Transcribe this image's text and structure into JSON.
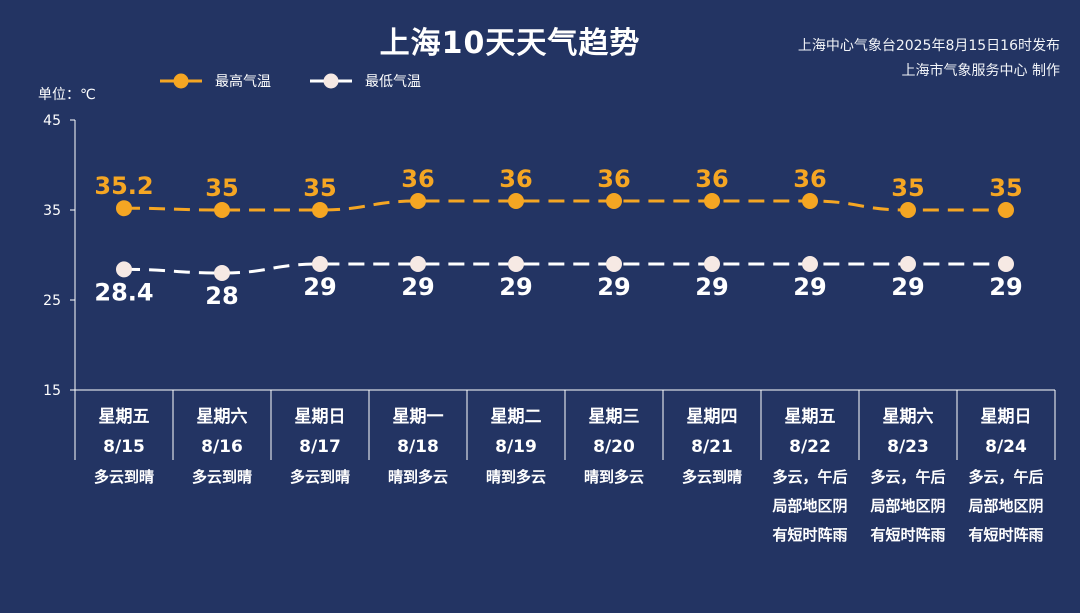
{
  "header": {
    "title": "上海10天天气趋势",
    "issuer": "上海中心气象台2025年8月15日16时发布",
    "producer": "上海市气象服务中心 制作"
  },
  "colors": {
    "background": "#233463",
    "high": "#f5a623",
    "low": "#ffffff",
    "axis": "#ffffff"
  },
  "chart_data": {
    "type": "line",
    "title": "上海10天天气趋势",
    "ylabel": "单位：℃",
    "ylim": [
      15,
      45
    ],
    "yticks": [
      15,
      25,
      35,
      45
    ],
    "legend_position": "top-left",
    "grid": false,
    "categories": [
      {
        "weekday": "星期五",
        "date": "8/15",
        "weather": [
          "多云到晴"
        ]
      },
      {
        "weekday": "星期六",
        "date": "8/16",
        "weather": [
          "多云到晴"
        ]
      },
      {
        "weekday": "星期日",
        "date": "8/17",
        "weather": [
          "多云到晴"
        ]
      },
      {
        "weekday": "星期一",
        "date": "8/18",
        "weather": [
          "晴到多云"
        ]
      },
      {
        "weekday": "星期二",
        "date": "8/19",
        "weather": [
          "晴到多云"
        ]
      },
      {
        "weekday": "星期三",
        "date": "8/20",
        "weather": [
          "晴到多云"
        ]
      },
      {
        "weekday": "星期四",
        "date": "8/21",
        "weather": [
          "多云到晴"
        ]
      },
      {
        "weekday": "星期五",
        "date": "8/22",
        "weather": [
          "多云，午后",
          "局部地区阴",
          "有短时阵雨"
        ]
      },
      {
        "weekday": "星期六",
        "date": "8/23",
        "weather": [
          "多云，午后",
          "局部地区阴",
          "有短时阵雨"
        ]
      },
      {
        "weekday": "星期日",
        "date": "8/24",
        "weather": [
          "多云，午后",
          "局部地区阴",
          "有短时阵雨"
        ]
      }
    ],
    "series": [
      {
        "name": "最高气温",
        "values": [
          35.2,
          35,
          35,
          36,
          36,
          36,
          36,
          36,
          35,
          35
        ],
        "labels": [
          "35.2",
          "35",
          "35",
          "36",
          "36",
          "36",
          "36",
          "36",
          "35",
          "35"
        ]
      },
      {
        "name": "最低气温",
        "values": [
          28.4,
          28,
          29,
          29,
          29,
          29,
          29,
          29,
          29,
          29
        ],
        "labels": [
          "28.4",
          "28",
          "29",
          "29",
          "29",
          "29",
          "29",
          "29",
          "29",
          "29"
        ]
      }
    ]
  }
}
